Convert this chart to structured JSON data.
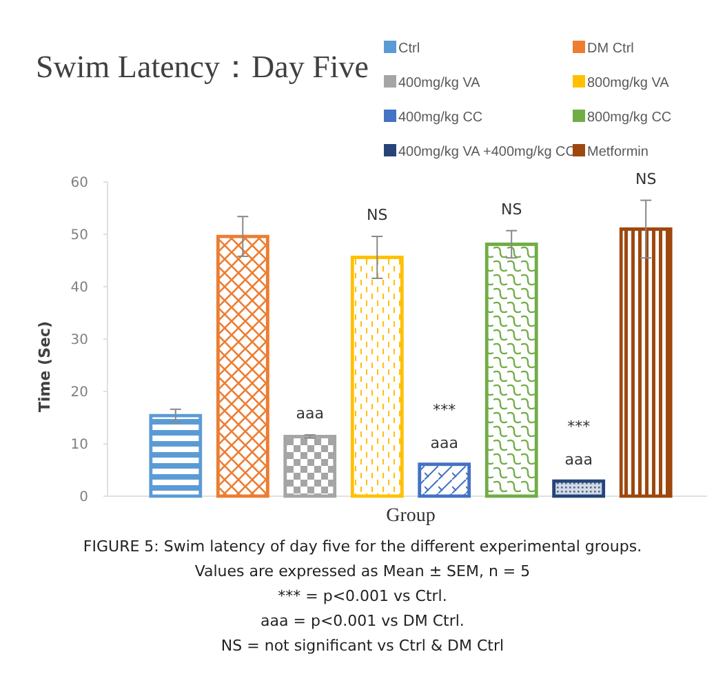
{
  "chart_data": {
    "type": "bar",
    "title": "Swim Latency：Day Five",
    "ylabel": "Time (Sec)",
    "categories": [
      "Group"
    ],
    "ylim": [
      0,
      60
    ],
    "yticks": [
      0,
      10,
      20,
      30,
      40,
      50,
      60
    ],
    "grid": false,
    "legend": "top right",
    "series": [
      {
        "name": "Ctrl",
        "color": "#5b9bd5",
        "values": [
          15.4
        ],
        "errors": [
          1.2
        ]
      },
      {
        "name": "DM Ctrl",
        "color": "#ed7d31",
        "values": [
          49.6
        ],
        "errors": [
          3.8
        ]
      },
      {
        "name": "400mg/kg VA",
        "color": "#a5a5a5",
        "values": [
          11.4
        ],
        "errors": [
          0.3
        ],
        "value_labels": [
          "aaa"
        ]
      },
      {
        "name": "800mg/kg VA",
        "color": "#ffc000",
        "values": [
          45.6
        ],
        "errors": [
          4.0
        ],
        "value_labels": [
          "NS"
        ]
      },
      {
        "name": "400mg/kg CC",
        "color": "#4472c4",
        "values": [
          6.1
        ],
        "value_labels": [
          "***\naaa"
        ]
      },
      {
        "name": "800mg/kg CC",
        "color": "#70ad47",
        "values": [
          48.1
        ],
        "errors": [
          2.6
        ],
        "value_labels": [
          "NS"
        ]
      },
      {
        "name": "400mg/kg VA +400mg/kg CC",
        "color": "#264478",
        "values": [
          2.9
        ],
        "value_labels": [
          "***\naaa"
        ]
      },
      {
        "name": "Metformin",
        "color": "#9e480e",
        "values": [
          51.0
        ],
        "errors": [
          5.5
        ],
        "value_labels": [
          "NS"
        ]
      }
    ],
    "annotations": [
      "FIGURE 5: Swim latency of day five for the different experimental groups.",
      "Values are expressed as Mean ± SEM, n = 5",
      "*** = p<0.001 vs Ctrl.",
      "aaa = p<0.001 vs DM Ctrl.",
      "NS = not significant vs Ctrl & DM Ctrl"
    ]
  }
}
